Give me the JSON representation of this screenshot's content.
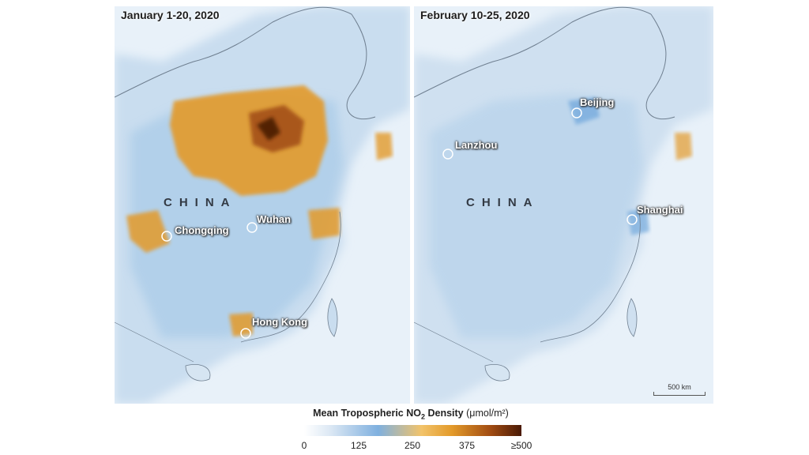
{
  "panels": {
    "left": {
      "title": "January 1-20, 2020",
      "country": "CHINA",
      "cities": [
        "Chongqing",
        "Wuhan",
        "Hong Kong"
      ]
    },
    "right": {
      "title": "February 10-25, 2020",
      "country": "CHINA",
      "cities": [
        "Lanzhou",
        "Beijing",
        "Shanghai"
      ],
      "scale_bar": "500 km"
    }
  },
  "legend": {
    "title": "Mean Tropospheric NO",
    "subscript": "2",
    "title_suffix": " Density",
    "unit": "(μmol/m²)",
    "ticks": [
      "0",
      "125",
      "250",
      "375",
      "≥500"
    ]
  },
  "colors": {
    "low": "#ffffff",
    "mid_blue": "#7fb0df",
    "mid_orange": "#e39a2a",
    "high": "#4a1a06"
  }
}
